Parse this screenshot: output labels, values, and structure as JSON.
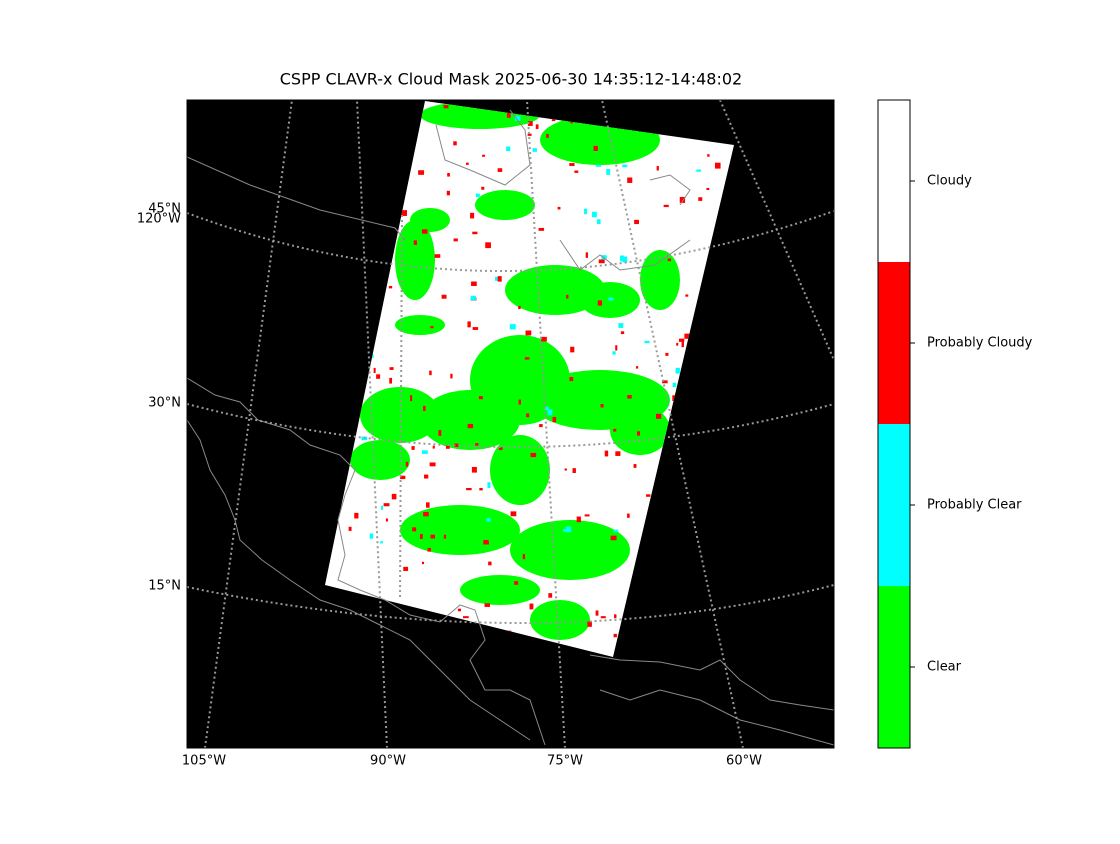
{
  "title": "CSPP CLAVR-x Cloud Mask 2025-06-30 14:35:12-14:48:02",
  "map": {
    "left_labels": [
      "45°N",
      "120°W",
      "30°N",
      "15°N"
    ],
    "bottom_labels": [
      "105°W",
      "90°W",
      "75°W",
      "60°W"
    ]
  },
  "legend": {
    "classes": [
      {
        "label": "Clear",
        "color": "#00ff00"
      },
      {
        "label": "Probably Clear",
        "color": "#00ffff"
      },
      {
        "label": "Probably Cloudy",
        "color": "#ff0000"
      },
      {
        "label": "Cloudy",
        "color": "#ffffff"
      }
    ]
  }
}
